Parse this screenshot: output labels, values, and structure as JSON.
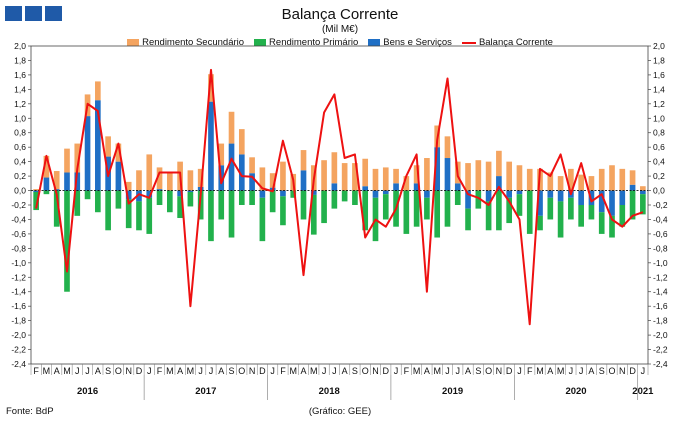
{
  "header": {
    "title": "Balança Corrente",
    "subtitle": "(Mil M€)"
  },
  "footer": {
    "source": "Fonte: BdP",
    "credit": "(Gráfico: GEE)"
  },
  "colors": {
    "rendimento_secundario": "#f4a460",
    "rendimento_primario": "#22b14c",
    "bens_servicos": "#1f6fc5",
    "balanca_corrente": "#ee1111",
    "logo": "#1f5aa8"
  },
  "chart_data": {
    "type": "bar",
    "stacked": true,
    "title": "Balança Corrente",
    "subtitle": "(Mil M€)",
    "ylim": [
      -2.4,
      2.0
    ],
    "yticks": [
      "2,0",
      "1,8",
      "1,6",
      "1,4",
      "1,2",
      "1,0",
      "0,8",
      "0,6",
      "0,4",
      "0,2",
      "0,0",
      "-0,2",
      "-0,4",
      "-0,6",
      "-0,8",
      "-1,0",
      "-1,2",
      "-1,4",
      "-1,6",
      "-1,8",
      "-2,0",
      "-2,2",
      "-2,4"
    ],
    "x": [
      "F",
      "M",
      "A",
      "M",
      "J",
      "J",
      "A",
      "S",
      "O",
      "N",
      "D",
      "J",
      "F",
      "M",
      "A",
      "M",
      "J",
      "J",
      "A",
      "S",
      "O",
      "N",
      "D",
      "J",
      "F",
      "M",
      "A",
      "M",
      "J",
      "J",
      "A",
      "S",
      "O",
      "N",
      "D",
      "J",
      "F",
      "M",
      "A",
      "M",
      "J",
      "J",
      "A",
      "S",
      "O",
      "N",
      "D",
      "J",
      "F",
      "M",
      "A",
      "M",
      "J",
      "J",
      "A",
      "S",
      "O",
      "N",
      "D",
      "J"
    ],
    "years": [
      {
        "label": "2016",
        "start": 0,
        "end": 10
      },
      {
        "label": "2017",
        "start": 11,
        "end": 22
      },
      {
        "label": "2018",
        "start": 23,
        "end": 34
      },
      {
        "label": "2019",
        "start": 35,
        "end": 46
      },
      {
        "label": "2020",
        "start": 47,
        "end": 58
      },
      {
        "label": "2021",
        "start": 59,
        "end": 59
      }
    ],
    "legend_position": "top",
    "series": [
      {
        "name": "Rendimento Secundário",
        "type": "bar",
        "values": [
          0.02,
          0.3,
          0.25,
          0.33,
          0.4,
          0.3,
          0.26,
          0.28,
          0.25,
          0.12,
          0.28,
          0.5,
          0.3,
          0.25,
          0.4,
          0.28,
          0.25,
          0.38,
          0.3,
          0.44,
          0.35,
          0.22,
          0.32,
          0.2,
          0.4,
          0.23,
          0.28,
          0.35,
          0.42,
          0.43,
          0.38,
          0.38,
          0.38,
          0.3,
          0.32,
          0.2,
          0.2,
          0.25,
          0.45,
          0.3,
          0.3,
          0.3,
          0.38,
          0.42,
          0.4,
          0.35,
          0.4,
          0.35,
          0.3,
          0.3,
          0.25,
          0.2,
          0.3,
          0.22,
          0.2,
          0.3,
          0.35,
          0.3,
          0.2,
          0.06
        ]
      },
      {
        "name": "Rendimento Primário",
        "type": "bar",
        "values": [
          -0.25,
          -0.05,
          -0.5,
          -1.4,
          -0.35,
          -0.12,
          -0.3,
          -0.55,
          -0.25,
          -0.4,
          -0.4,
          -0.5,
          -0.2,
          -0.3,
          -0.3,
          -0.2,
          -0.4,
          -0.7,
          -0.4,
          -0.65,
          -0.2,
          -0.2,
          -0.6,
          -0.3,
          -0.4,
          -0.1,
          -0.4,
          -0.55,
          -0.45,
          -0.25,
          -0.15,
          -0.2,
          -0.55,
          -0.6,
          -0.35,
          -0.5,
          -0.6,
          -0.5,
          -0.3,
          -0.65,
          -0.5,
          -0.2,
          -0.3,
          -0.25,
          -0.4,
          -0.55,
          -0.35,
          -0.3,
          -0.6,
          -0.2,
          -0.3,
          -0.5,
          -0.3,
          -0.3,
          -0.2,
          -0.3,
          -0.3,
          -0.3,
          -0.4,
          -0.28
        ]
      },
      {
        "name": "Bens e Serviços",
        "type": "bar",
        "values": [
          -0.02,
          0.18,
          0.02,
          0.25,
          0.25,
          1.03,
          1.25,
          0.47,
          0.4,
          -0.12,
          -0.15,
          -0.1,
          0.02,
          0.0,
          -0.08,
          -0.02,
          0.05,
          1.23,
          0.35,
          0.65,
          0.5,
          0.24,
          -0.1,
          0.04,
          -0.08,
          0.0,
          0.28,
          -0.06,
          0.0,
          0.1,
          0.0,
          0.0,
          0.06,
          -0.1,
          -0.05,
          0.1,
          0.0,
          0.1,
          -0.1,
          0.6,
          0.45,
          0.1,
          -0.25,
          0.0,
          -0.15,
          0.2,
          -0.1,
          -0.05,
          0.0,
          -0.35,
          -0.1,
          -0.15,
          -0.1,
          -0.2,
          -0.2,
          -0.3,
          -0.35,
          -0.2,
          0.08,
          -0.05
        ]
      },
      {
        "name": "Balança Corrente",
        "type": "line",
        "values": [
          -0.25,
          0.48,
          -0.05,
          -1.12,
          0.3,
          1.2,
          1.1,
          0.2,
          0.65,
          -0.18,
          -0.05,
          -0.1,
          0.25,
          0.25,
          0.25,
          -1.6,
          -0.05,
          1.67,
          0.1,
          0.44,
          0.2,
          0.19,
          0.03,
          -0.01,
          0.69,
          0.15,
          -1.17,
          0.15,
          1.08,
          1.33,
          0.45,
          0.5,
          -0.65,
          -0.4,
          -0.5,
          -0.25,
          0.2,
          0.5,
          -1.4,
          0.7,
          1.55,
          0.2,
          -0.05,
          -0.1,
          -0.2,
          0.05,
          -0.15,
          -0.4,
          -1.85,
          0.3,
          0.2,
          0.5,
          -0.05,
          0.38,
          -0.15,
          -0.05,
          -0.4,
          -0.5,
          -0.35,
          -0.3
        ]
      }
    ]
  }
}
